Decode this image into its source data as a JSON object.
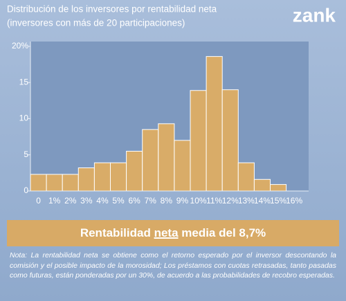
{
  "logo": "zank",
  "chart_data": {
    "type": "bar",
    "title": [
      "Distribución de los inversores por rentabilidad neta",
      "(inversores con más de 20 participaciones)"
    ],
    "categories": [
      "0",
      "1%",
      "2%",
      "3%",
      "4%",
      "5%",
      "6%",
      "7%",
      "8%",
      "9%",
      "10%",
      "11%",
      "12%",
      "13%",
      "14%",
      "15%",
      "16%"
    ],
    "values": [
      2.3,
      2.3,
      2.3,
      3.2,
      3.9,
      3.9,
      5.5,
      8.5,
      9.3,
      7.0,
      13.9,
      18.6,
      14.0,
      3.9,
      1.6,
      0.9,
      0
    ],
    "color": "#d9ac68",
    "ylim": [
      0,
      20
    ],
    "yticks": [
      0,
      5,
      10,
      15,
      {
        "value": 20,
        "label": "20%"
      }
    ]
  },
  "banner": {
    "before": "Rentabilidad ",
    "emphasis": "neta",
    "after": " media del 8,7%"
  },
  "note": "Nota: La rentabilidad neta se obtiene como el retorno esperado por el inversor descontando la comisión y el posible impacto de la morosidad; Los préstamos con cuotas retrasadas, tanto pasadas como futuras, están ponderadas por un 30%, de acuerdo a las probabilidades de recobro esperadas."
}
